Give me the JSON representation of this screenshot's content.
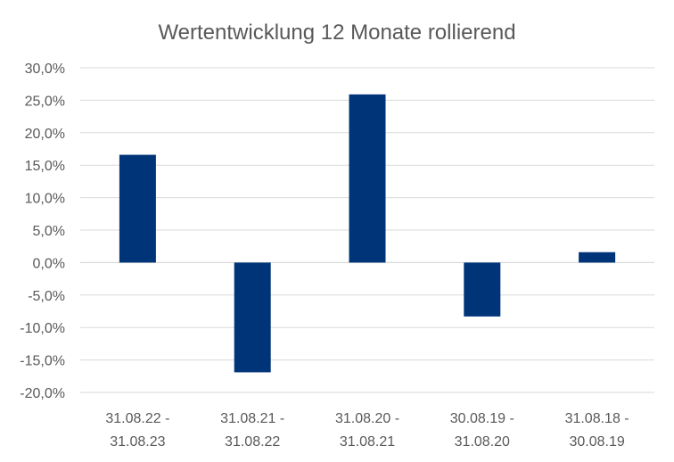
{
  "chart_data": {
    "type": "bar",
    "title": "Wertentwicklung 12 Monate rollierend",
    "xlabel": "",
    "ylabel": "",
    "categories": [
      [
        "31.08.22 -",
        "31.08.23"
      ],
      [
        "31.08.21 -",
        "31.08.22"
      ],
      [
        "31.08.20 -",
        "31.08.21"
      ],
      [
        "30.08.19 -",
        "31.08.20"
      ],
      [
        "31.08.18 -",
        "30.08.19"
      ]
    ],
    "values": [
      16.6,
      -16.9,
      25.9,
      -8.3,
      1.6
    ],
    "ylim": [
      -20,
      30
    ],
    "yticks": [
      30,
      25,
      20,
      15,
      10,
      5,
      0,
      -5,
      -10,
      -15,
      -20
    ],
    "ytick_labels": [
      "30,0%",
      "25,0%",
      "20,0%",
      "15,0%",
      "10,0%",
      "5,0%",
      "0,0%",
      "-5,0%",
      "-10,0%",
      "-15,0%",
      "-20,0%"
    ],
    "bar_color": "#003478",
    "grid": true,
    "legend": "none"
  }
}
